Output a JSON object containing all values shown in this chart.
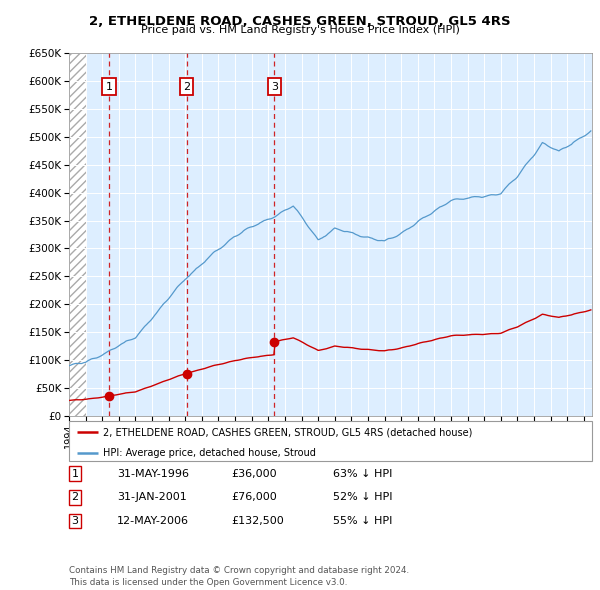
{
  "title": "2, ETHELDENE ROAD, CASHES GREEN, STROUD, GL5 4RS",
  "subtitle": "Price paid vs. HM Land Registry's House Price Index (HPI)",
  "transactions": [
    {
      "num": 1,
      "date_label": "31-MAY-1996",
      "date_x": 1996.41,
      "price": 36000,
      "hpi_pct": "63% ↓ HPI"
    },
    {
      "num": 2,
      "date_label": "31-JAN-2001",
      "date_x": 2001.08,
      "price": 76000,
      "hpi_pct": "52% ↓ HPI"
    },
    {
      "num": 3,
      "date_label": "12-MAY-2006",
      "date_x": 2006.36,
      "price": 132500,
      "hpi_pct": "55% ↓ HPI"
    }
  ],
  "legend_property": "2, ETHELDENE ROAD, CASHES GREEN, STROUD, GL5 4RS (detached house)",
  "legend_hpi": "HPI: Average price, detached house, Stroud",
  "footer": "Contains HM Land Registry data © Crown copyright and database right 2024.\nThis data is licensed under the Open Government Licence v3.0.",
  "red_color": "#cc0000",
  "blue_color": "#5599cc",
  "bg_color": "#ddeeff",
  "xmin": 1994.0,
  "xmax": 2025.5,
  "ymin": 0,
  "ymax": 650000,
  "hatch_end": 1995.0,
  "table_data": [
    [
      "1",
      "31-MAY-1996",
      "£36,000",
      "63% ↓ HPI"
    ],
    [
      "2",
      "31-JAN-2001",
      "£76,000",
      "52% ↓ HPI"
    ],
    [
      "3",
      "12-MAY-2006",
      "£132,500",
      "55% ↓ HPI"
    ]
  ]
}
